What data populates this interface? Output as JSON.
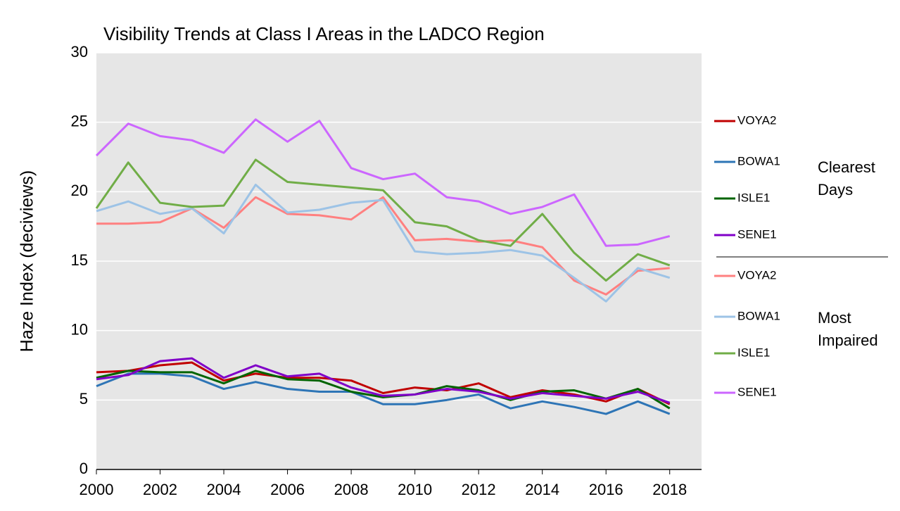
{
  "chart_data": {
    "type": "line",
    "title": "Visibility Trends at Class I Areas in the LADCO Region",
    "y_label": "Haze Index (deciviews)",
    "x": [
      2000,
      2001,
      2002,
      2003,
      2004,
      2005,
      2006,
      2007,
      2008,
      2009,
      2010,
      2011,
      2012,
      2013,
      2014,
      2015,
      2016,
      2017,
      2018
    ],
    "xlim": [
      2000,
      2019
    ],
    "xticks": [
      2000,
      2002,
      2004,
      2006,
      2008,
      2010,
      2012,
      2014,
      2016,
      2018
    ],
    "ylim": [
      0,
      30
    ],
    "yticks": [
      0,
      5,
      10,
      15,
      20,
      25,
      30
    ],
    "grid": true,
    "legend": "right",
    "annotations": [
      "Clearest Days",
      "Most Impaired"
    ],
    "series": [
      {
        "name": "VOYA2",
        "color": "#c00000",
        "values": [
          7.0,
          7.1,
          7.5,
          7.7,
          6.4,
          6.9,
          6.6,
          6.6,
          6.4,
          5.5,
          5.9,
          5.7,
          6.2,
          5.2,
          5.7,
          5.4,
          4.9,
          5.8,
          4.7
        ]
      },
      {
        "name": "BOWA1",
        "color": "#2e75b6",
        "values": [
          6.0,
          6.9,
          6.9,
          6.7,
          5.8,
          6.3,
          5.8,
          5.6,
          5.6,
          4.7,
          4.7,
          5.0,
          5.4,
          4.4,
          4.9,
          4.5,
          4.0,
          4.9,
          4.0
        ]
      },
      {
        "name": "ISLE1",
        "color": "#006400",
        "values": [
          6.6,
          7.1,
          7.0,
          7.0,
          6.2,
          7.1,
          6.5,
          6.4,
          5.6,
          5.2,
          5.4,
          6.0,
          5.7,
          5.0,
          5.6,
          5.7,
          5.1,
          5.8,
          4.4
        ]
      },
      {
        "name": "SENE1",
        "color": "#8000c8",
        "values": [
          6.5,
          6.8,
          7.8,
          8.0,
          6.6,
          7.5,
          6.7,
          6.9,
          5.9,
          5.3,
          5.4,
          5.8,
          5.6,
          5.1,
          5.5,
          5.3,
          5.1,
          5.6,
          4.8
        ]
      },
      {
        "name": "VOYA2",
        "color": "#ff8080",
        "values": [
          17.7,
          17.7,
          17.8,
          18.8,
          17.4,
          19.6,
          18.4,
          18.3,
          18.0,
          19.6,
          16.5,
          16.6,
          16.4,
          16.5,
          16.0,
          13.6,
          12.6,
          14.3,
          14.5
        ]
      },
      {
        "name": "BOWA1",
        "color": "#9dc3e6",
        "values": [
          18.6,
          19.3,
          18.4,
          18.8,
          17.0,
          20.5,
          18.5,
          18.7,
          19.2,
          19.4,
          15.7,
          15.5,
          15.6,
          15.8,
          15.4,
          13.8,
          12.1,
          14.5,
          13.8
        ]
      },
      {
        "name": "ISLE1",
        "color": "#70ad47",
        "values": [
          18.8,
          22.1,
          19.2,
          18.9,
          19.0,
          22.3,
          20.7,
          20.5,
          20.3,
          20.1,
          17.8,
          17.5,
          16.5,
          16.1,
          18.4,
          15.6,
          13.6,
          15.5,
          14.7
        ]
      },
      {
        "name": "SENE1",
        "color": "#cc66ff",
        "values": [
          22.6,
          24.9,
          24.0,
          23.7,
          22.8,
          25.2,
          23.6,
          25.1,
          21.7,
          20.9,
          21.3,
          19.6,
          19.3,
          18.4,
          18.9,
          19.8,
          16.1,
          16.2,
          16.8
        ]
      }
    ]
  }
}
